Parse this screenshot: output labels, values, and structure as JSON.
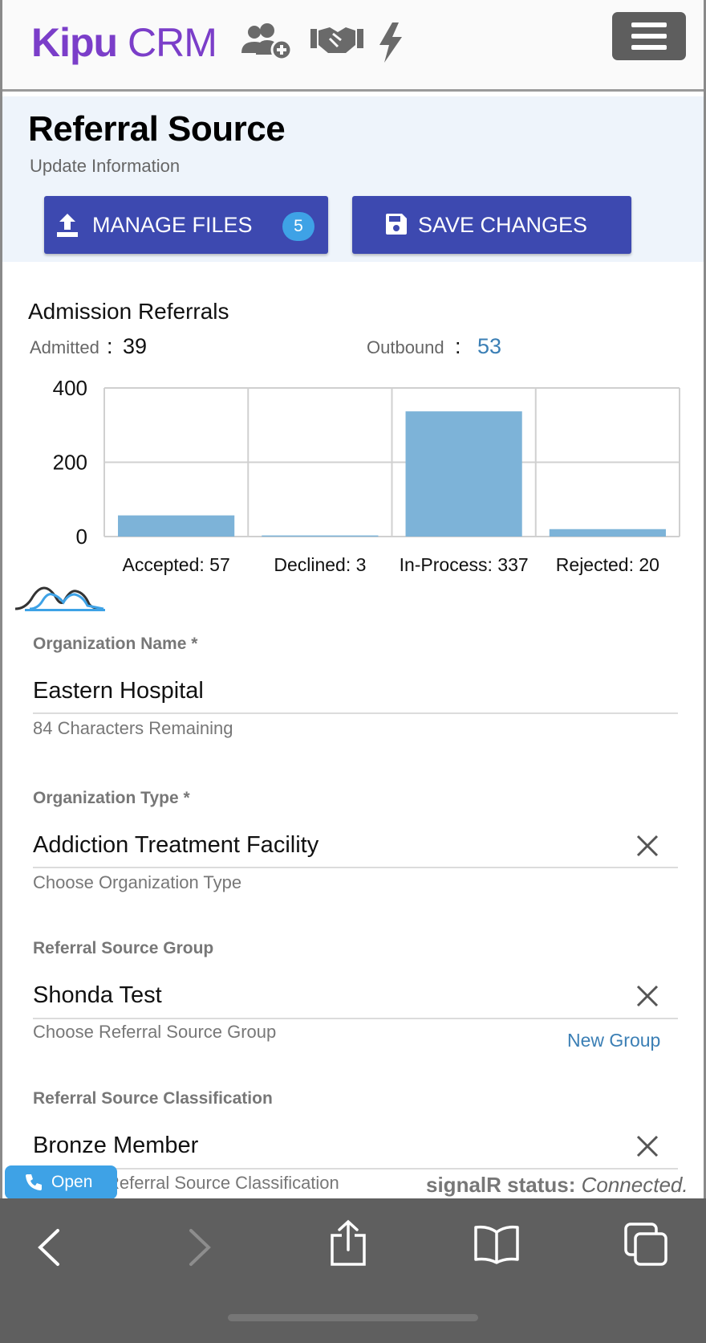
{
  "app": {
    "logo_k": "Kipu",
    "logo_rest": " CRM",
    "nav_icons": [
      "add-user-icon",
      "handshake-icon",
      "lightning-icon"
    ],
    "menu_icon": "hamburger-icon"
  },
  "header": {
    "title": "Referral Source",
    "subtitle": "Update Information",
    "manage_files_label": "MANAGE FILES",
    "manage_files_count": "5",
    "save_label": "SAVE CHANGES"
  },
  "admission": {
    "title": "Admission Referrals",
    "admitted_label": "Admitted",
    "admitted_sep": ":",
    "admitted_value": "39",
    "outbound_label": "Outbound",
    "outbound_sep": ":",
    "outbound_value": "53"
  },
  "chart_data": {
    "type": "bar",
    "categories": [
      "Accepted: 57",
      "Declined: 3",
      "In-Process: 337",
      "Rejected: 20"
    ],
    "values": [
      57,
      3,
      337,
      20
    ],
    "title": "",
    "xlabel": "",
    "ylabel": "",
    "ylim": [
      0,
      400
    ],
    "yticks": [
      "0",
      "200",
      "400"
    ],
    "grid": true,
    "color": "#7db3d8"
  },
  "form": {
    "org_name": {
      "label": "Organization Name *",
      "value": "Eastern Hospital",
      "hint": "84 Characters Remaining"
    },
    "org_type": {
      "label": "Organization Type *",
      "value": "Addiction Treatment Facility",
      "hint": "Choose Organization Type"
    },
    "group": {
      "label": "Referral Source Group",
      "value": "Shonda Test",
      "hint": "Choose Referral Source Group",
      "link": "New Group"
    },
    "classification": {
      "label": "Referral Source Classification",
      "value": "Bronze Member",
      "hint": "Referral Source Classification"
    }
  },
  "footer": {
    "open_label": "Open",
    "signal_label": "signalR status:",
    "signal_value": "Connected."
  },
  "colors": {
    "brand": "#7b3ec9",
    "button": "#3d49b0",
    "badge": "#3ea2e6",
    "link": "#3b7fb5"
  }
}
